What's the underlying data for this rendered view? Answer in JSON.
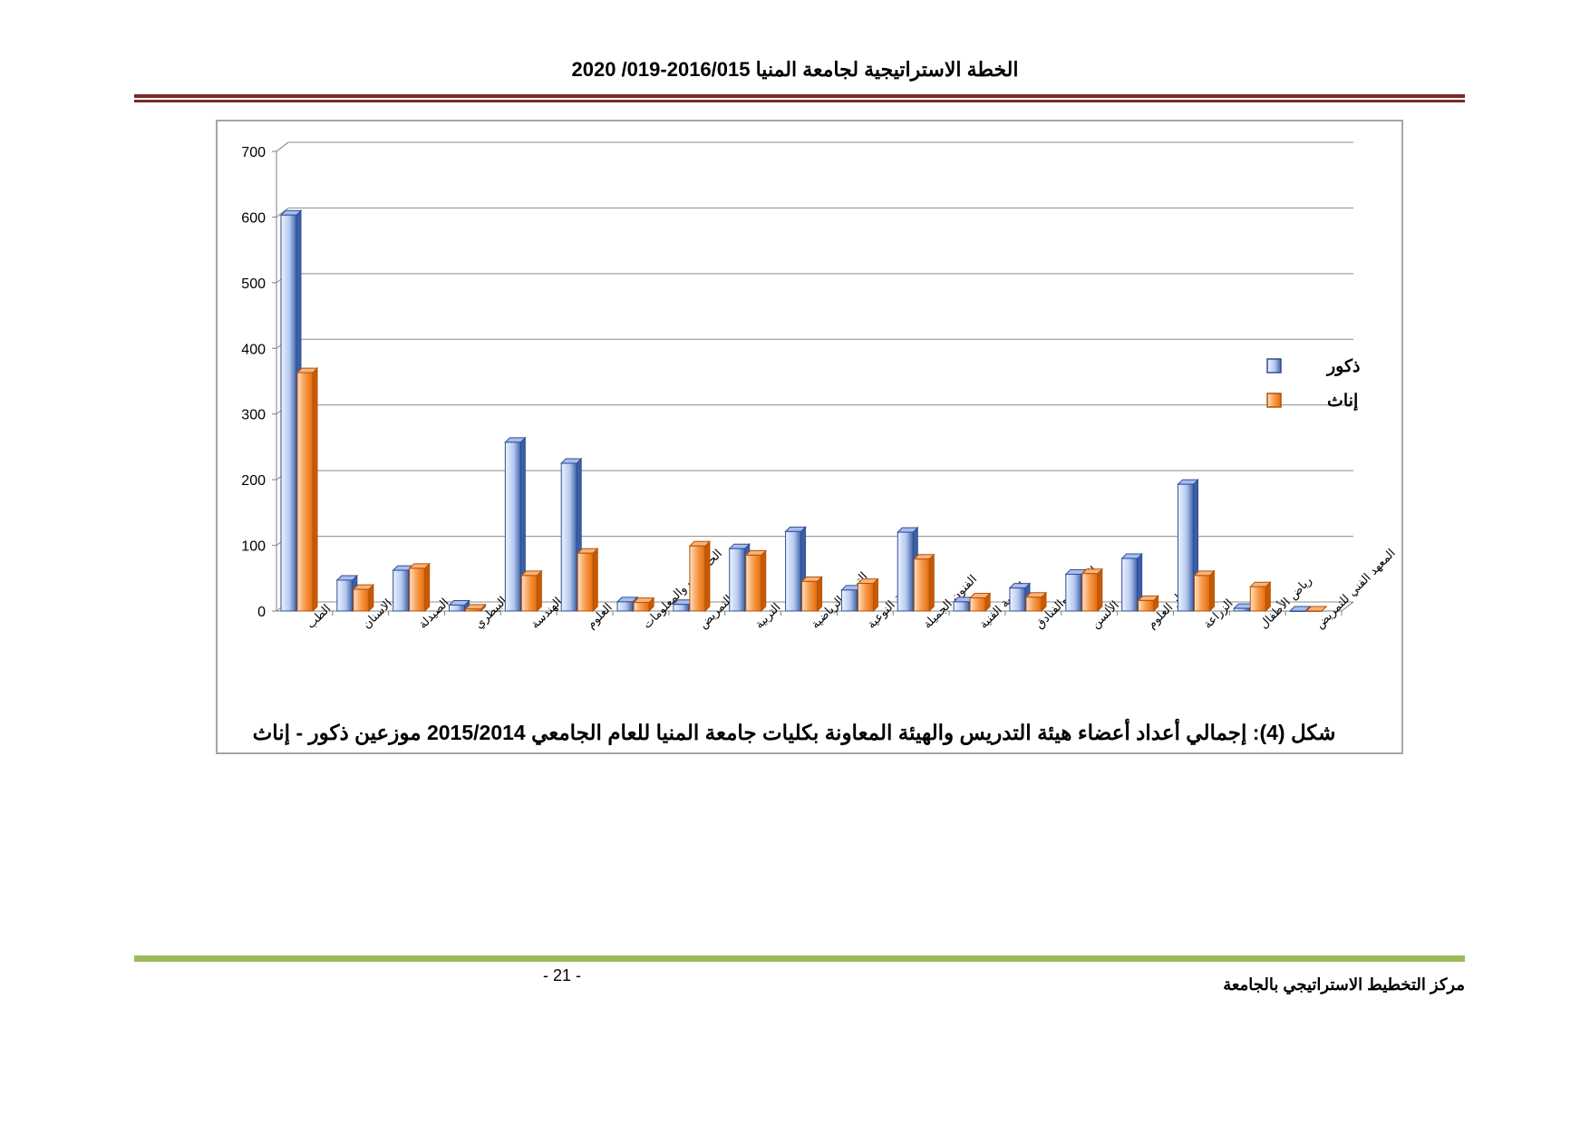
{
  "header": {
    "title": "الخطة الاستراتيجية لجامعة المنيا 2016/015-019/ 2020"
  },
  "caption": "شكل (4): إجمالي أعداد أعضاء هيئة التدريس والهيئة المعاونة بكليات جامعة المنيا للعام الجامعي 2015/2014 موزعين ذكور - إناث",
  "footer": {
    "page_number": "- 21 -",
    "text": "مركز التخطيط الاستراتيجي بالجامعة"
  },
  "colors": {
    "male": "#3f63a8",
    "female": "#e46c0a",
    "header_rule": "#7b2b2b",
    "footer_rule": "#9bbb59"
  },
  "chart_data": {
    "type": "bar",
    "categories": [
      "الطب",
      "طب الاسنان",
      "الصيدلة",
      "الطب البيطري",
      "الهندسة",
      "العلوم",
      "الحاسبات والمعلومات",
      "التمريض",
      "التربية",
      "التربية الرياضية",
      "التربية النوعية",
      "الفنون الجميلة",
      "التربية الفنية",
      "السياحة والفنادق",
      "الألسن",
      "دار العلوم",
      "الزراعة",
      "رياض الأطفال",
      "المعهد الفني للتمريض"
    ],
    "series": [
      {
        "name": "ذكور",
        "values": [
          603,
          47,
          62,
          9,
          257,
          225,
          14,
          10,
          95,
          121,
          32,
          120,
          14,
          35,
          56,
          80,
          193,
          4,
          0
        ]
      },
      {
        "name": "إناث",
        "values": [
          363,
          33,
          65,
          3,
          54,
          88,
          13,
          99,
          85,
          45,
          42,
          79,
          20,
          21,
          57,
          16,
          54,
          37,
          0
        ]
      }
    ],
    "yticks": [
      "0",
      "100",
      "200",
      "300",
      "400",
      "500",
      "600",
      "700"
    ],
    "ylim": [
      0,
      700
    ],
    "legend_position": "right",
    "grid": true
  }
}
